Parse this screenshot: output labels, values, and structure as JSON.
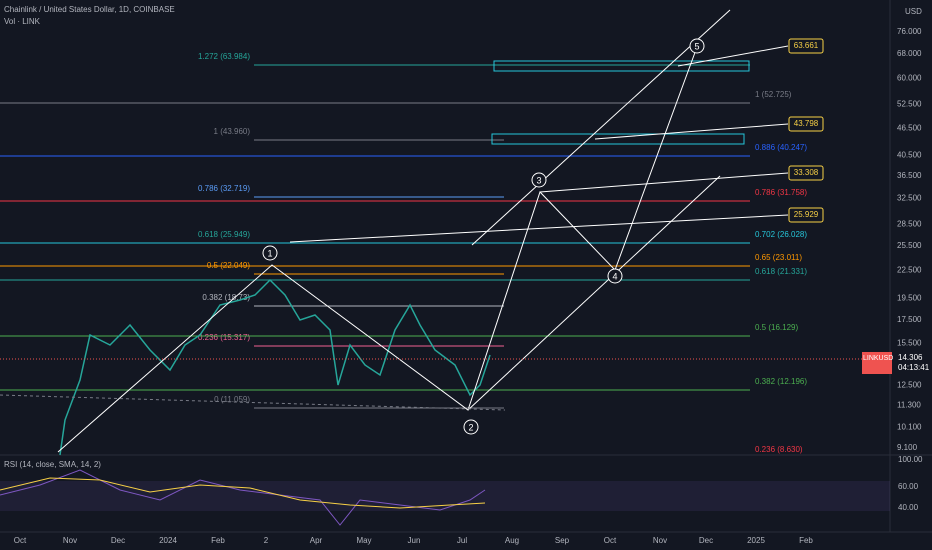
{
  "header": {
    "symbol": "Chainlink / United States Dollar, 1D, COINBASE",
    "volume": "Vol · LINK",
    "currency": "USD"
  },
  "price_axis": [
    {
      "value": 76,
      "label": "76.000"
    },
    {
      "value": 68,
      "label": "68.000"
    },
    {
      "value": 60,
      "label": "60.000"
    },
    {
      "value": 52.5,
      "label": "52.500"
    },
    {
      "value": 46.5,
      "label": "46.500"
    },
    {
      "value": 40.5,
      "label": "40.500"
    },
    {
      "value": 36.5,
      "label": "36.500"
    },
    {
      "value": 32.5,
      "label": "32.500"
    },
    {
      "value": 28.5,
      "label": "28.500"
    },
    {
      "value": 25.5,
      "label": "25.500"
    },
    {
      "value": 22.5,
      "label": "22.500"
    },
    {
      "value": 19.5,
      "label": "19.500"
    },
    {
      "value": 17.5,
      "label": "17.500"
    },
    {
      "value": 15.5,
      "label": "15.500"
    },
    {
      "value": 12.5,
      "label": "12.500"
    },
    {
      "value": 11.3,
      "label": "11.300"
    },
    {
      "value": 10.1,
      "label": "10.100"
    },
    {
      "value": 9.1,
      "label": "9.100"
    }
  ],
  "last_price": {
    "symbol": "LINKUSD",
    "price": "14.306",
    "countdown": "04:13:41"
  },
  "time_axis": [
    "Oct",
    "Nov",
    "Dec",
    "2024",
    "Feb",
    "2",
    "Apr",
    "May",
    "Jun",
    "Jul",
    "Aug",
    "Sep",
    "Oct",
    "Nov",
    "Dec",
    "2025",
    "Feb"
  ],
  "fib_left": [
    "1.272 (63.984)",
    "1 (43.960)",
    "0.786 (32.719)",
    "0.618 (25.949)",
    "0.5 (22.049)",
    "0.382 (18.73)",
    "0.236 (15.317)",
    "0 (11.059)"
  ],
  "fib_right": [
    "1 (52.725)",
    "0.886 (40.247)",
    "0.786 (31.758)",
    "0.702 (26.028)",
    "0.65 (23.011)",
    "0.618 (21.331)",
    "0.5 (16.129)",
    "0.382 (12.196)",
    "0.236 (8.630)"
  ],
  "targets": [
    "63.661",
    "43.798",
    "33.308",
    "25.929"
  ],
  "waves": [
    "1",
    "2",
    "3",
    "4",
    "5"
  ],
  "rsi": {
    "label": "RSI (14, close, SMA, 14, 2)",
    "axis": [
      "100.00",
      "60.00",
      "40.00"
    ]
  }
}
